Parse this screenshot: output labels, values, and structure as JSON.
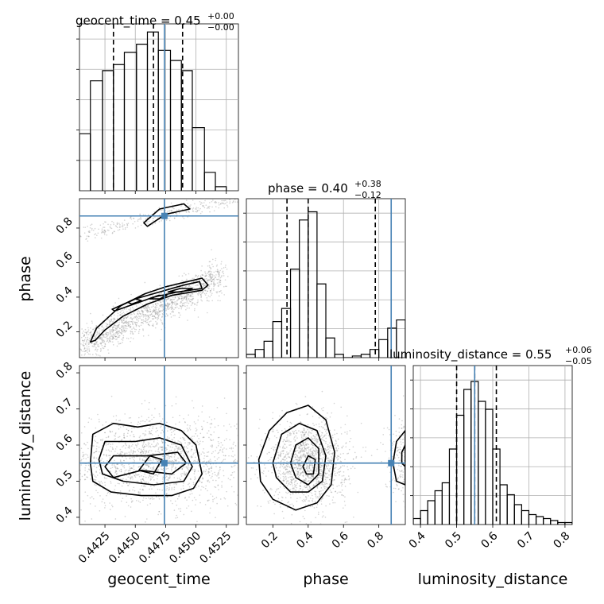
{
  "chart_data": [
    {
      "type": "histogram",
      "panel": "geocent_time",
      "title": {
        "name": "geocent_time",
        "value": "0.45",
        "plus": "+0.00",
        "minus": "−0.00"
      },
      "bin_edges": [
        0.4404,
        0.4413,
        0.4423,
        0.4432,
        0.4441,
        0.4451,
        0.446,
        0.4469,
        0.4479,
        0.4488,
        0.4497,
        0.4507,
        0.4516,
        0.4525
      ],
      "values": [
        0.28,
        0.54,
        0.59,
        0.62,
        0.68,
        0.72,
        0.78,
        0.69,
        0.64,
        0.59,
        0.31,
        0.09,
        0.02
      ],
      "quantile_lines": [
        0.4432,
        0.4465,
        0.4489
      ],
      "truth": 0.4474,
      "xlim": [
        0.4404,
        0.4535
      ],
      "ylim": [
        0,
        0.82
      ],
      "grid": true
    },
    {
      "type": "histogram",
      "panel": "phase",
      "title": {
        "name": "phase",
        "value": "0.40",
        "plus": "+0.38",
        "minus": "−0.12"
      },
      "bin_edges": [
        0.05,
        0.1,
        0.15,
        0.2,
        0.25,
        0.3,
        0.35,
        0.4,
        0.45,
        0.5,
        0.55,
        0.6,
        0.65,
        0.7,
        0.75,
        0.8,
        0.85,
        0.9,
        0.95
      ],
      "values": [
        0.02,
        0.05,
        0.1,
        0.22,
        0.3,
        0.54,
        0.84,
        0.89,
        0.45,
        0.12,
        0.02,
        0.0,
        0.01,
        0.02,
        0.05,
        0.11,
        0.18,
        0.23
      ],
      "quantile_lines": [
        0.28,
        0.4,
        0.78
      ],
      "truth": 0.87,
      "xlim": [
        0.05,
        0.95
      ],
      "ylim": [
        0,
        0.97
      ],
      "grid": true
    },
    {
      "type": "histogram",
      "panel": "luminosity_distance",
      "title": {
        "name": "luminosity_distance",
        "value": "0.55",
        "plus": "+0.06",
        "minus": "−0.05"
      },
      "bin_edges": [
        0.38,
        0.4,
        0.42,
        0.44,
        0.46,
        0.48,
        0.5,
        0.52,
        0.54,
        0.56,
        0.58,
        0.6,
        0.62,
        0.64,
        0.66,
        0.68,
        0.7,
        0.72,
        0.74,
        0.76,
        0.78,
        0.8,
        0.82
      ],
      "values": [
        0.03,
        0.07,
        0.12,
        0.17,
        0.21,
        0.38,
        0.55,
        0.68,
        0.72,
        0.62,
        0.58,
        0.38,
        0.2,
        0.15,
        0.1,
        0.07,
        0.05,
        0.04,
        0.03,
        0.02,
        0.01,
        0.01
      ],
      "quantile_lines": [
        0.5,
        0.55,
        0.61
      ],
      "truth": 0.55,
      "xlim": [
        0.38,
        0.82
      ],
      "ylim": [
        0,
        0.8
      ],
      "grid": true
    },
    {
      "type": "scatter",
      "panel": "phase vs geocent_time",
      "x_param": "geocent_time",
      "y_param": "phase",
      "xlim": [
        0.4404,
        0.4535
      ],
      "ylim": [
        0.05,
        0.97
      ],
      "truth": [
        0.4474,
        0.87
      ],
      "modes": [
        {
          "start": [
            0.4405,
            0.12
          ],
          "end": [
            0.4522,
            0.52
          ],
          "width_y": 0.05,
          "weight": 0.82
        },
        {
          "start": [
            0.4405,
            0.76
          ],
          "end": [
            0.4535,
            0.98
          ],
          "width_y": 0.022,
          "weight": 0.18
        }
      ],
      "contours": [
        [
          [
            0.4413,
            0.14
          ],
          [
            0.4418,
            0.22
          ],
          [
            0.4438,
            0.35
          ],
          [
            0.4458,
            0.42
          ],
          [
            0.4475,
            0.46
          ],
          [
            0.4493,
            0.49
          ],
          [
            0.4505,
            0.51
          ],
          [
            0.451,
            0.47
          ],
          [
            0.4505,
            0.44
          ],
          [
            0.448,
            0.41
          ],
          [
            0.446,
            0.36
          ],
          [
            0.444,
            0.29
          ],
          [
            0.4425,
            0.21
          ],
          [
            0.4417,
            0.15
          ]
        ],
        [
          [
            0.4431,
            0.33
          ],
          [
            0.445,
            0.39
          ],
          [
            0.447,
            0.43
          ],
          [
            0.449,
            0.47
          ],
          [
            0.4503,
            0.49
          ],
          [
            0.4505,
            0.45
          ],
          [
            0.4485,
            0.43
          ],
          [
            0.4465,
            0.4
          ],
          [
            0.4445,
            0.35
          ],
          [
            0.4433,
            0.32
          ]
        ],
        [
          [
            0.4447,
            0.36
          ],
          [
            0.4455,
            0.38
          ],
          [
            0.445,
            0.39
          ],
          [
            0.4444,
            0.37
          ]
        ],
        [
          [
            0.4462,
            0.39
          ],
          [
            0.4469,
            0.41
          ],
          [
            0.4476,
            0.41
          ],
          [
            0.447,
            0.39
          ]
        ],
        [
          [
            0.4477,
            0.43
          ],
          [
            0.4487,
            0.45
          ],
          [
            0.4497,
            0.45
          ],
          [
            0.4488,
            0.43
          ]
        ],
        [
          [
            0.4457,
            0.83
          ],
          [
            0.447,
            0.91
          ],
          [
            0.449,
            0.94
          ],
          [
            0.4495,
            0.91
          ],
          [
            0.4475,
            0.88
          ],
          [
            0.446,
            0.81
          ]
        ]
      ]
    },
    {
      "type": "scatter",
      "panel": "luminosity_distance vs geocent_time",
      "x_param": "geocent_time",
      "y_param": "luminosity_distance",
      "xlim": [
        0.4404,
        0.4535
      ],
      "ylim": [
        0.38,
        0.82
      ],
      "truth": [
        0.4474,
        0.55
      ],
      "modes": [
        {
          "center": [
            0.4468,
            0.555
          ],
          "spread": [
            0.0042,
            0.06
          ],
          "weight": 1.0
        }
      ],
      "contours": [
        [
          [
            0.4413,
            0.55
          ],
          [
            0.4415,
            0.63
          ],
          [
            0.4432,
            0.66
          ],
          [
            0.4452,
            0.65
          ],
          [
            0.447,
            0.66
          ],
          [
            0.4488,
            0.64
          ],
          [
            0.45,
            0.6
          ],
          [
            0.4505,
            0.52
          ],
          [
            0.4498,
            0.48
          ],
          [
            0.448,
            0.46
          ],
          [
            0.4455,
            0.46
          ],
          [
            0.443,
            0.47
          ],
          [
            0.4415,
            0.5
          ]
        ],
        [
          [
            0.442,
            0.56
          ],
          [
            0.4425,
            0.61
          ],
          [
            0.445,
            0.61
          ],
          [
            0.447,
            0.62
          ],
          [
            0.4488,
            0.6
          ],
          [
            0.4497,
            0.54
          ],
          [
            0.449,
            0.5
          ],
          [
            0.4465,
            0.49
          ],
          [
            0.444,
            0.5
          ],
          [
            0.4423,
            0.52
          ]
        ],
        [
          [
            0.4425,
            0.54
          ],
          [
            0.4432,
            0.57
          ],
          [
            0.446,
            0.57
          ],
          [
            0.4485,
            0.58
          ],
          [
            0.4492,
            0.55
          ],
          [
            0.448,
            0.52
          ],
          [
            0.4455,
            0.53
          ],
          [
            0.4432,
            0.51
          ]
        ],
        [
          [
            0.4453,
            0.53
          ],
          [
            0.4462,
            0.57
          ],
          [
            0.4472,
            0.56
          ],
          [
            0.4465,
            0.52
          ]
        ]
      ]
    },
    {
      "type": "scatter",
      "panel": "luminosity_distance vs phase",
      "x_param": "phase",
      "y_param": "luminosity_distance",
      "xlim": [
        0.05,
        0.95
      ],
      "ylim": [
        0.38,
        0.82
      ],
      "truth": [
        0.87,
        0.55
      ],
      "modes": [
        {
          "center": [
            0.4,
            0.55
          ],
          "spread": [
            0.11,
            0.06
          ],
          "weight": 0.85
        },
        {
          "center": [
            0.93,
            0.56
          ],
          "spread": [
            0.05,
            0.06
          ],
          "weight": 0.15
        }
      ],
      "contours": [
        [
          [
            0.12,
            0.56
          ],
          [
            0.18,
            0.64
          ],
          [
            0.28,
            0.69
          ],
          [
            0.4,
            0.71
          ],
          [
            0.5,
            0.67
          ],
          [
            0.55,
            0.58
          ],
          [
            0.53,
            0.49
          ],
          [
            0.45,
            0.44
          ],
          [
            0.33,
            0.42
          ],
          [
            0.2,
            0.45
          ],
          [
            0.13,
            0.5
          ]
        ],
        [
          [
            0.2,
            0.55
          ],
          [
            0.25,
            0.63
          ],
          [
            0.35,
            0.66
          ],
          [
            0.45,
            0.64
          ],
          [
            0.5,
            0.57
          ],
          [
            0.48,
            0.5
          ],
          [
            0.4,
            0.47
          ],
          [
            0.3,
            0.47
          ],
          [
            0.22,
            0.51
          ]
        ],
        [
          [
            0.3,
            0.55
          ],
          [
            0.33,
            0.6
          ],
          [
            0.4,
            0.62
          ],
          [
            0.46,
            0.59
          ],
          [
            0.46,
            0.52
          ],
          [
            0.4,
            0.49
          ],
          [
            0.33,
            0.51
          ]
        ],
        [
          [
            0.37,
            0.54
          ],
          [
            0.4,
            0.57
          ],
          [
            0.44,
            0.56
          ],
          [
            0.43,
            0.52
          ],
          [
            0.39,
            0.52
          ]
        ],
        [
          [
            0.95,
            0.64
          ],
          [
            0.9,
            0.61
          ],
          [
            0.88,
            0.55
          ],
          [
            0.9,
            0.5
          ],
          [
            0.95,
            0.49
          ]
        ],
        [
          [
            0.95,
            0.6
          ],
          [
            0.93,
            0.58
          ],
          [
            0.93,
            0.55
          ],
          [
            0.95,
            0.54
          ]
        ]
      ]
    }
  ],
  "axes": {
    "geocent_time": {
      "label": "geocent_time",
      "ticks": [
        0.4425,
        0.445,
        0.4475,
        0.45,
        0.4525
      ],
      "tick_labels": [
        "0.4425",
        "0.4450",
        "0.4475",
        "0.4500",
        "0.4525"
      ]
    },
    "phase": {
      "label": "phase",
      "ticks": [
        0.2,
        0.4,
        0.6,
        0.8
      ],
      "tick_labels": [
        "0.2",
        "0.4",
        "0.6",
        "0.8"
      ]
    },
    "luminosity_distance": {
      "label": "luminosity_distance",
      "ticks": [
        0.4,
        0.5,
        0.6,
        0.7,
        0.8
      ],
      "tick_labels": [
        "0.4",
        "0.5",
        "0.6",
        "0.7",
        "0.8"
      ]
    }
  },
  "colors": {
    "truth": "#4682b4",
    "histogram": "#000000",
    "grid": "#b0b0b0",
    "scatter": "#808080"
  }
}
